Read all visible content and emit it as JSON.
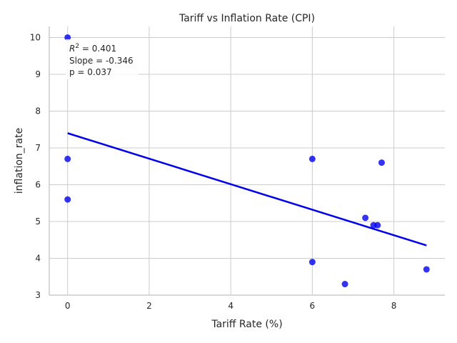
{
  "chart_data": {
    "type": "scatter",
    "title": "Tariff vs Inflation Rate (CPI)",
    "xlabel": "Tariff Rate (%)",
    "ylabel": "inflation_rate",
    "xlim": [
      -0.45,
      9.25
    ],
    "ylim": [
      3.0,
      10.3
    ],
    "xticks": [
      0,
      2,
      4,
      6,
      8
    ],
    "yticks": [
      3,
      4,
      5,
      6,
      7,
      8,
      9,
      10
    ],
    "grid": true,
    "points": [
      {
        "x": 0.0,
        "y": 10.0
      },
      {
        "x": 0.0,
        "y": 6.7
      },
      {
        "x": 0.0,
        "y": 5.6
      },
      {
        "x": 6.0,
        "y": 6.7
      },
      {
        "x": 6.0,
        "y": 3.9
      },
      {
        "x": 6.8,
        "y": 3.3
      },
      {
        "x": 7.3,
        "y": 5.1
      },
      {
        "x": 7.5,
        "y": 4.9
      },
      {
        "x": 7.6,
        "y": 4.9
      },
      {
        "x": 7.7,
        "y": 6.6
      },
      {
        "x": 8.8,
        "y": 3.7
      }
    ],
    "regression_line": {
      "x": [
        0.0,
        8.8
      ],
      "y": [
        7.4,
        4.35
      ]
    },
    "point_color": "#0000ee",
    "line_color": "#0000ee",
    "annotation": {
      "r2_label": "R",
      "r2_exp": "2",
      "r2_value": " = 0.401",
      "slope": "Slope = -0.346",
      "p": "p = 0.037"
    }
  }
}
